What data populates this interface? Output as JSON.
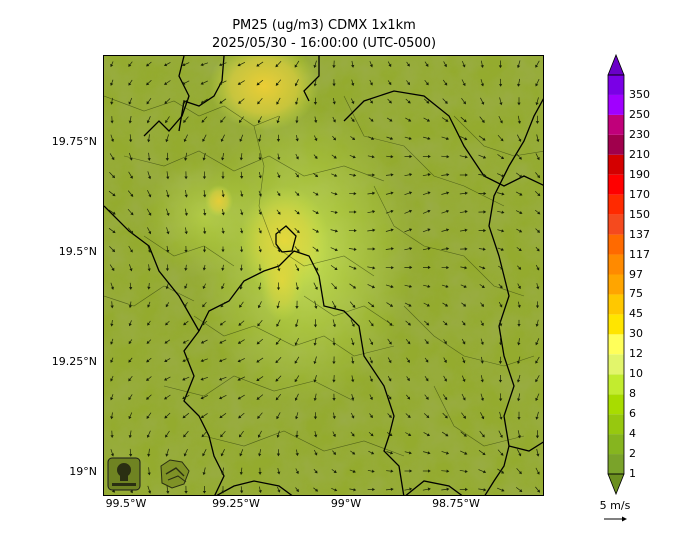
{
  "title": {
    "line1": "PM25 (ug/m3) CDMX 1x1km",
    "line2": "2025/05/30 - 16:00:00 (UTC-0500)"
  },
  "map": {
    "lat_ticks": [
      "19.75°N",
      "19.5°N",
      "19.25°N",
      "19°N"
    ],
    "lon_ticks": [
      "99.5°W",
      "99.25°W",
      "99°W",
      "98.75°W"
    ],
    "base_color": "#8fa62a",
    "plume_color": "#e6d63a",
    "boundary_color": "#000000",
    "logos": [
      "sedema-logo",
      "aire-cdmx-logo"
    ]
  },
  "colorbar": {
    "levels": [
      "1",
      "2",
      "4",
      "6",
      "8",
      "10",
      "12",
      "30",
      "45",
      "75",
      "97",
      "117",
      "137",
      "150",
      "170",
      "190",
      "210",
      "230",
      "250",
      "350"
    ],
    "colors": [
      "#7aa32a",
      "#86b51f",
      "#97c80f",
      "#a8dc00",
      "#c2ec2f",
      "#e2f56b",
      "#ffff5a",
      "#ffe500",
      "#ffc800",
      "#ffa500",
      "#ff8a00",
      "#ff6a00",
      "#f54a1e",
      "#ff2a00",
      "#ff0000",
      "#d40000",
      "#a0004c",
      "#c0007a",
      "#a000ff",
      "#7a00e6"
    ],
    "under_color": "#6b8f1f",
    "over_color": "#6a00c8"
  },
  "wind_key": {
    "label": "5 m/s"
  }
}
